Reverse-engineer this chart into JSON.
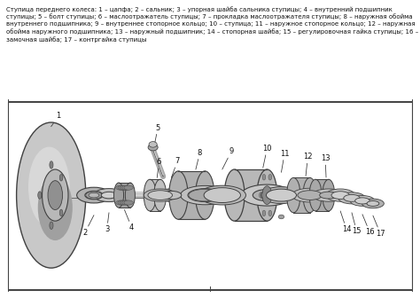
{
  "title_text": "Ступица переднего колеса: 1 – цапфа; 2 – сальник; 3 – упорная шайба сальника ступицы; 4 – внутренний подшипник ступицы; 5 – болт ступицы; 6 – маслоотражатель ступицы; 7 – прокладка маслоотражателя ступицы; 8 – наружная обойма внутреннего подшипника; 9 – внутреннее стопорное кольцо; 10 – ступица; 11 – наружное стопорное кольцо; 12 – наружная обойма наружного подшипника; 13 – наружный подшипник; 14 – стопорная шайба; 15 – регулировочная гайка ступицы; 16 – замочная шайба; 17 – контргайка ступицы",
  "bg_color": "#ffffff",
  "diagram_bg": "#ffffff",
  "border_color": "#555555",
  "text_color": "#111111",
  "title_fontsize": 5.0,
  "label_fontsize": 6.0,
  "fig_width": 4.74,
  "fig_height": 3.36,
  "dpi": 100,
  "metal_light": "#d0d0d0",
  "metal_mid": "#a8a8a8",
  "metal_dark": "#787878",
  "metal_edge": "#404040",
  "bearing_color": "#909090",
  "shaft_color": "#b8b8b8"
}
